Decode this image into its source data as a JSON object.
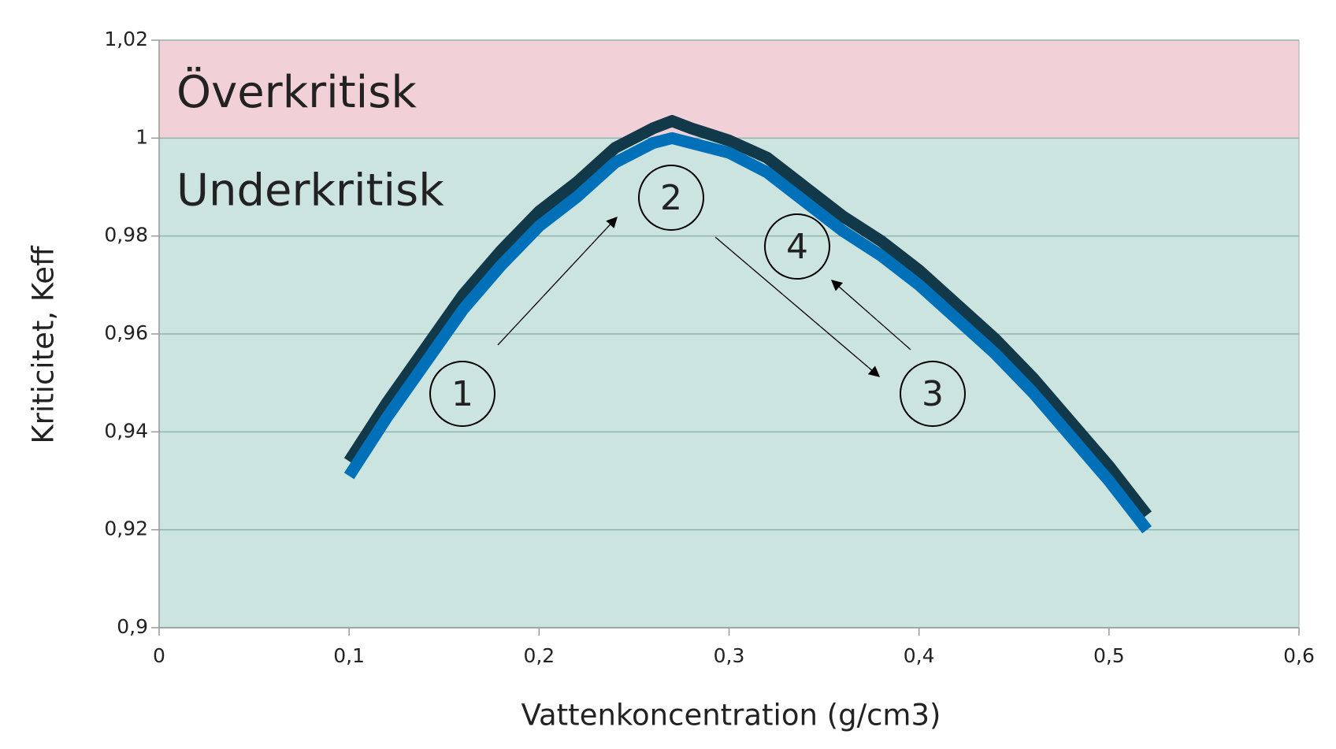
{
  "chart_data": {
    "type": "line",
    "x_label": "Vattenkoncentration (g/cm3)",
    "y_label": "Kriticitet, Keff",
    "x": [
      0.1,
      0.12,
      0.14,
      0.16,
      0.18,
      0.2,
      0.22,
      0.24,
      0.26,
      0.27,
      0.28,
      0.3,
      0.32,
      0.34,
      0.36,
      0.38,
      0.4,
      0.42,
      0.44,
      0.46,
      0.48,
      0.5,
      0.52
    ],
    "series": [
      {
        "color": "#12394a",
        "values": [
          0.934,
          0.946,
          0.957,
          0.968,
          0.977,
          0.985,
          0.991,
          0.998,
          1.002,
          1.0035,
          1.002,
          0.9995,
          0.996,
          0.99,
          0.984,
          0.979,
          0.973,
          0.966,
          0.959,
          0.951,
          0.942,
          0.933,
          0.923
        ]
      },
      {
        "color": "#0070b8",
        "values": [
          0.931,
          0.943,
          0.954,
          0.965,
          0.974,
          0.982,
          0.988,
          0.995,
          0.999,
          1.0,
          0.999,
          0.997,
          0.993,
          0.987,
          0.981,
          0.976,
          0.97,
          0.963,
          0.956,
          0.948,
          0.939,
          0.93,
          0.92
        ]
      }
    ],
    "regions": [
      {
        "label": "Överkritisk",
        "from": 1,
        "to": 1.02,
        "color": "#f2d0d8"
      },
      {
        "label": "Underkritisk",
        "from": 0.9,
        "to": 1,
        "color": "#cce4e0"
      }
    ],
    "annotations": [
      "1",
      "2",
      "3",
      "4"
    ],
    "xlim": [
      0,
      0.6
    ],
    "xticks": [
      0,
      {
        "value": 0.1,
        "label": "0,1"
      },
      {
        "value": 0.2,
        "label": "0,2"
      },
      {
        "value": 0.3,
        "label": "0,3"
      },
      {
        "value": 0.4,
        "label": "0,4"
      },
      {
        "value": 0.5,
        "label": "0,5"
      },
      {
        "value": 0.6,
        "label": "0,6"
      }
    ],
    "ylim": [
      0.9,
      1.02
    ],
    "yticks": [
      {
        "value": 0.9,
        "label": "0,9"
      },
      {
        "value": 0.92,
        "label": "0,92"
      },
      {
        "value": 0.94,
        "label": "0,94"
      },
      {
        "value": 0.96,
        "label": "0,96"
      },
      {
        "value": 0.98,
        "label": "0,98"
      },
      1,
      {
        "value": 1.02,
        "label": "1,02"
      }
    ],
    "grid": true
  }
}
